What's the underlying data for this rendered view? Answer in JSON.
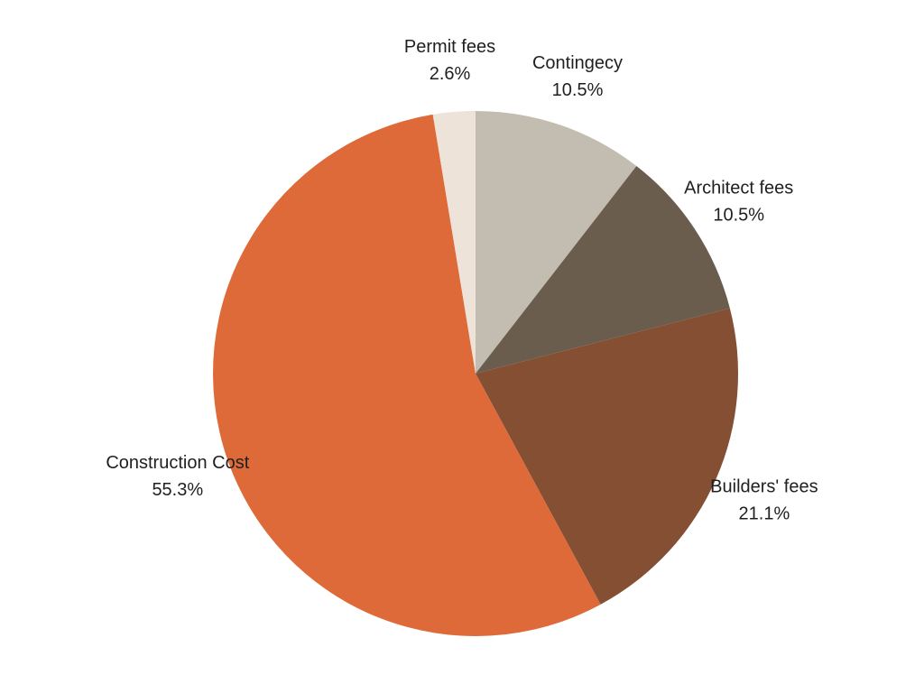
{
  "chart_data": {
    "type": "pie",
    "title": "",
    "start_angle_deg": 0,
    "direction": "clockwise",
    "slices": [
      {
        "label": "Contingecy",
        "value": 10.5,
        "display": "10.5%",
        "color": "#c3bcb0"
      },
      {
        "label": "Architect fees",
        "value": 10.5,
        "display": "10.5%",
        "color": "#6b5d4e"
      },
      {
        "label": "Builders' fees",
        "value": 21.1,
        "display": "21.1%",
        "color": "#854f34"
      },
      {
        "label": "Construction Cost",
        "value": 55.3,
        "display": "55.3%",
        "color": "#df6a39"
      },
      {
        "label": "Permit fees",
        "value": 2.6,
        "display": "2.6%",
        "color": "#ede3d8"
      }
    ]
  }
}
